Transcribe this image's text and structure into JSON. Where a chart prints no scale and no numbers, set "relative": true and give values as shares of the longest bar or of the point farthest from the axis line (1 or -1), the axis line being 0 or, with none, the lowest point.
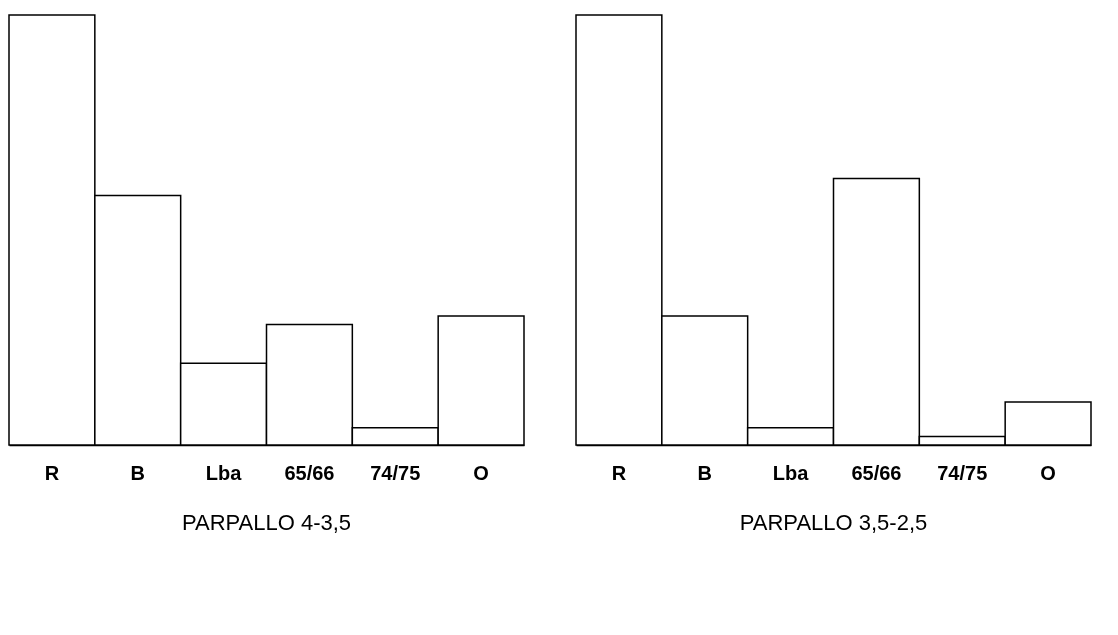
{
  "chart_data": [
    {
      "type": "bar",
      "title": "PARPALLO 4-3,5",
      "relative": true,
      "grid": false,
      "categories": [
        "R",
        "B",
        "Lba",
        "65/66",
        "74/75",
        "O"
      ],
      "series": [
        {
          "color": "#ffffff",
          "values": [
            1,
            0.58,
            0.19,
            0.28,
            0.04,
            0.3
          ]
        }
      ]
    },
    {
      "type": "bar",
      "title": "PARPALLO 3,5-2,5",
      "relative": true,
      "grid": false,
      "categories": [
        "R",
        "B",
        "Lba",
        "65/66",
        "74/75",
        "O"
      ],
      "series": [
        {
          "color": "#ffffff",
          "values": [
            1,
            0.3,
            0.04,
            0.62,
            0.02,
            0.1
          ]
        }
      ]
    }
  ]
}
